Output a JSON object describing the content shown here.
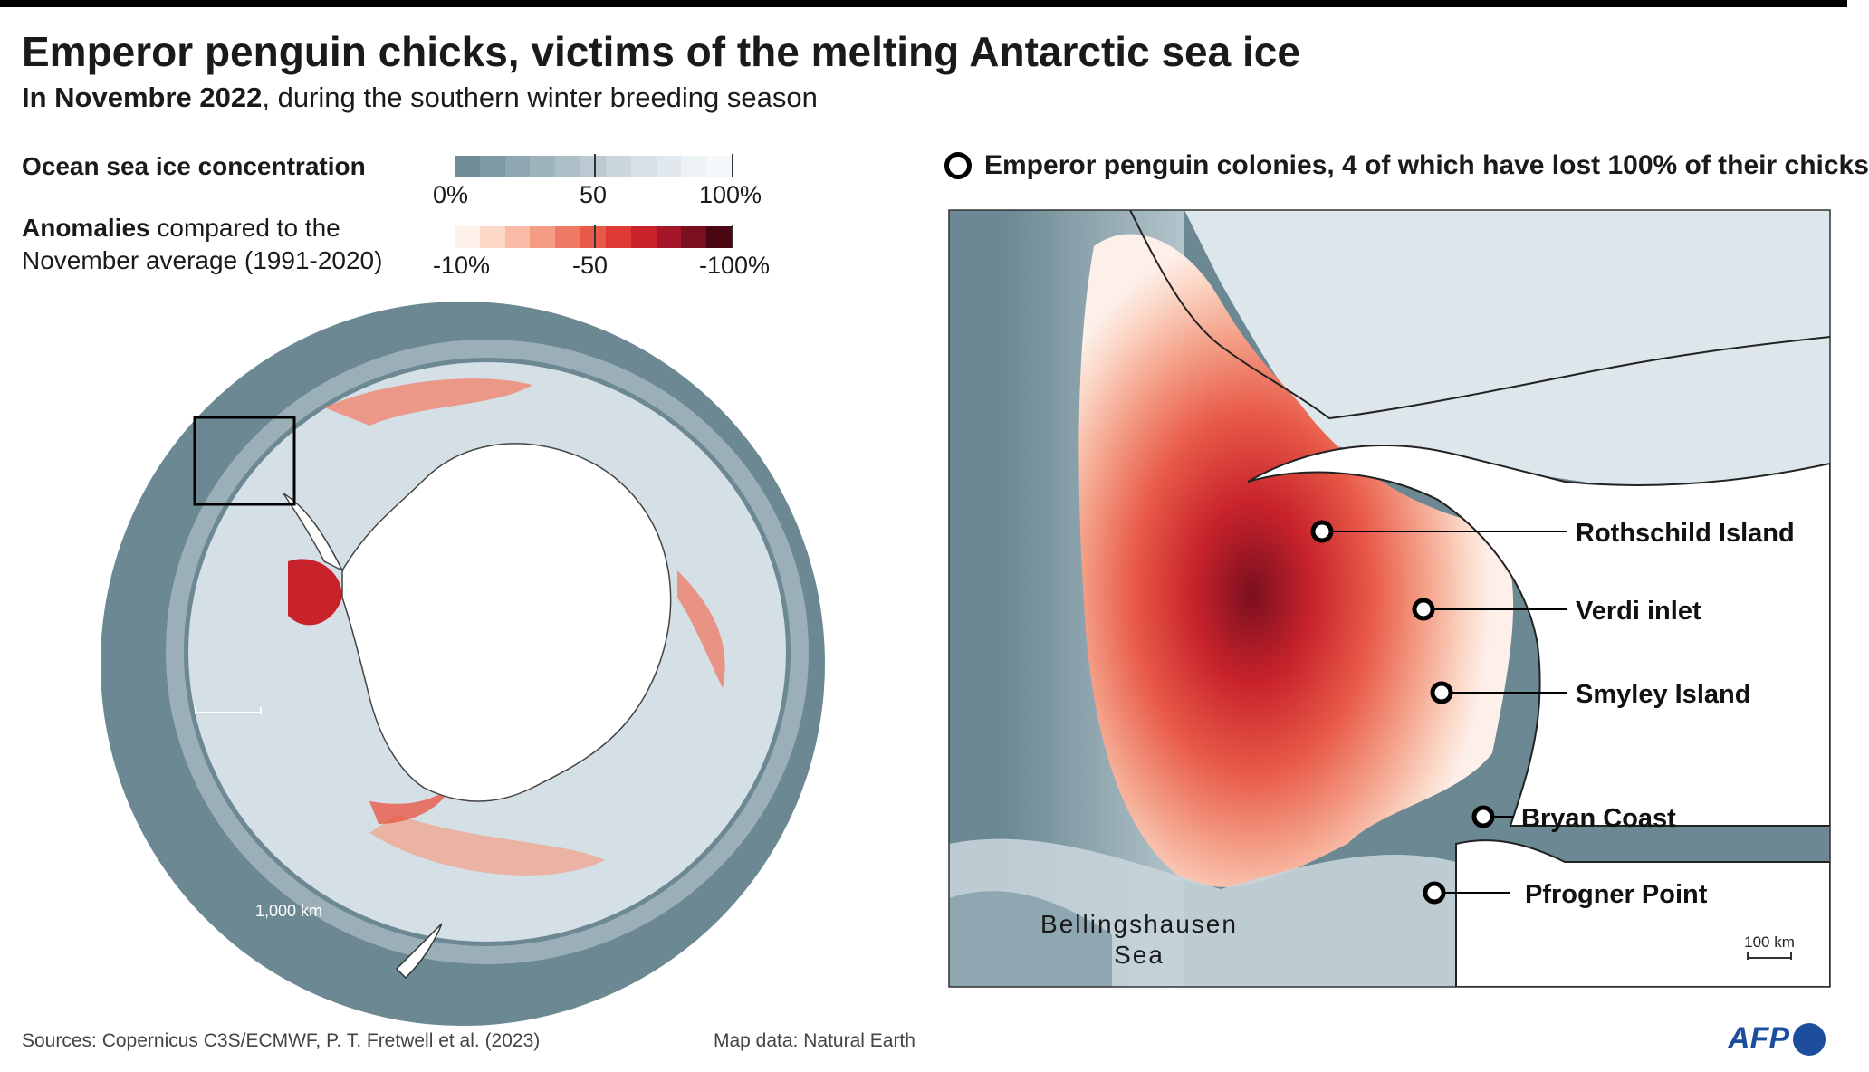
{
  "title": "Emperor penguin chicks, victims of the melting Antarctic sea ice",
  "subtitle_bold": "In Novembre 2022",
  "subtitle_rest": ", during the southern winter breeding season",
  "legend": {
    "concentration_title": "Ocean sea ice concentration",
    "concentration_ticks": [
      "0%",
      "50",
      "100%"
    ],
    "concentration_colors": [
      "#6e8d98",
      "#7e9aa4",
      "#8ea7b0",
      "#9eb4bc",
      "#adc0c7",
      "#bccbd2",
      "#c9d6dc",
      "#d6e0e5",
      "#e2e9ee",
      "#edf2f5",
      "#f5f8fa"
    ],
    "anomalies_bold": "Anomalies",
    "anomalies_rest": " compared to the November average (1991-2020)",
    "anomaly_ticks": [
      "-10%",
      "-50",
      "-100%"
    ],
    "anomaly_colors": [
      "#fdf0ea",
      "#fbd8c8",
      "#f8bca6",
      "#f49d84",
      "#ee7a63",
      "#e85a48",
      "#df3b34",
      "#c8232b",
      "#a5162a",
      "#7a0f1f",
      "#4a0612"
    ]
  },
  "colony_legend": "Emperor penguin colonies, 4 of which have lost 100% of their chicks",
  "colonies": [
    "Rothschild Island",
    "Verdi inlet",
    "Smyley Island",
    "Bryan Coast",
    "Pfrogner Point"
  ],
  "sea_label": [
    "Bellingshausen",
    "Sea"
  ],
  "scale_left": "1,000 km",
  "scale_right": "100 km",
  "sources": "Sources: Copernicus C3S/ECMWF, P. T. Fretwell et al. (2023)",
  "map_data": "Map data: Natural Earth",
  "logo": "AFP",
  "colors": {
    "ocean": "#6b8893",
    "ice_light": "#dde6eb",
    "land": "#ffffff",
    "anomaly_strong": "#c8232b"
  }
}
